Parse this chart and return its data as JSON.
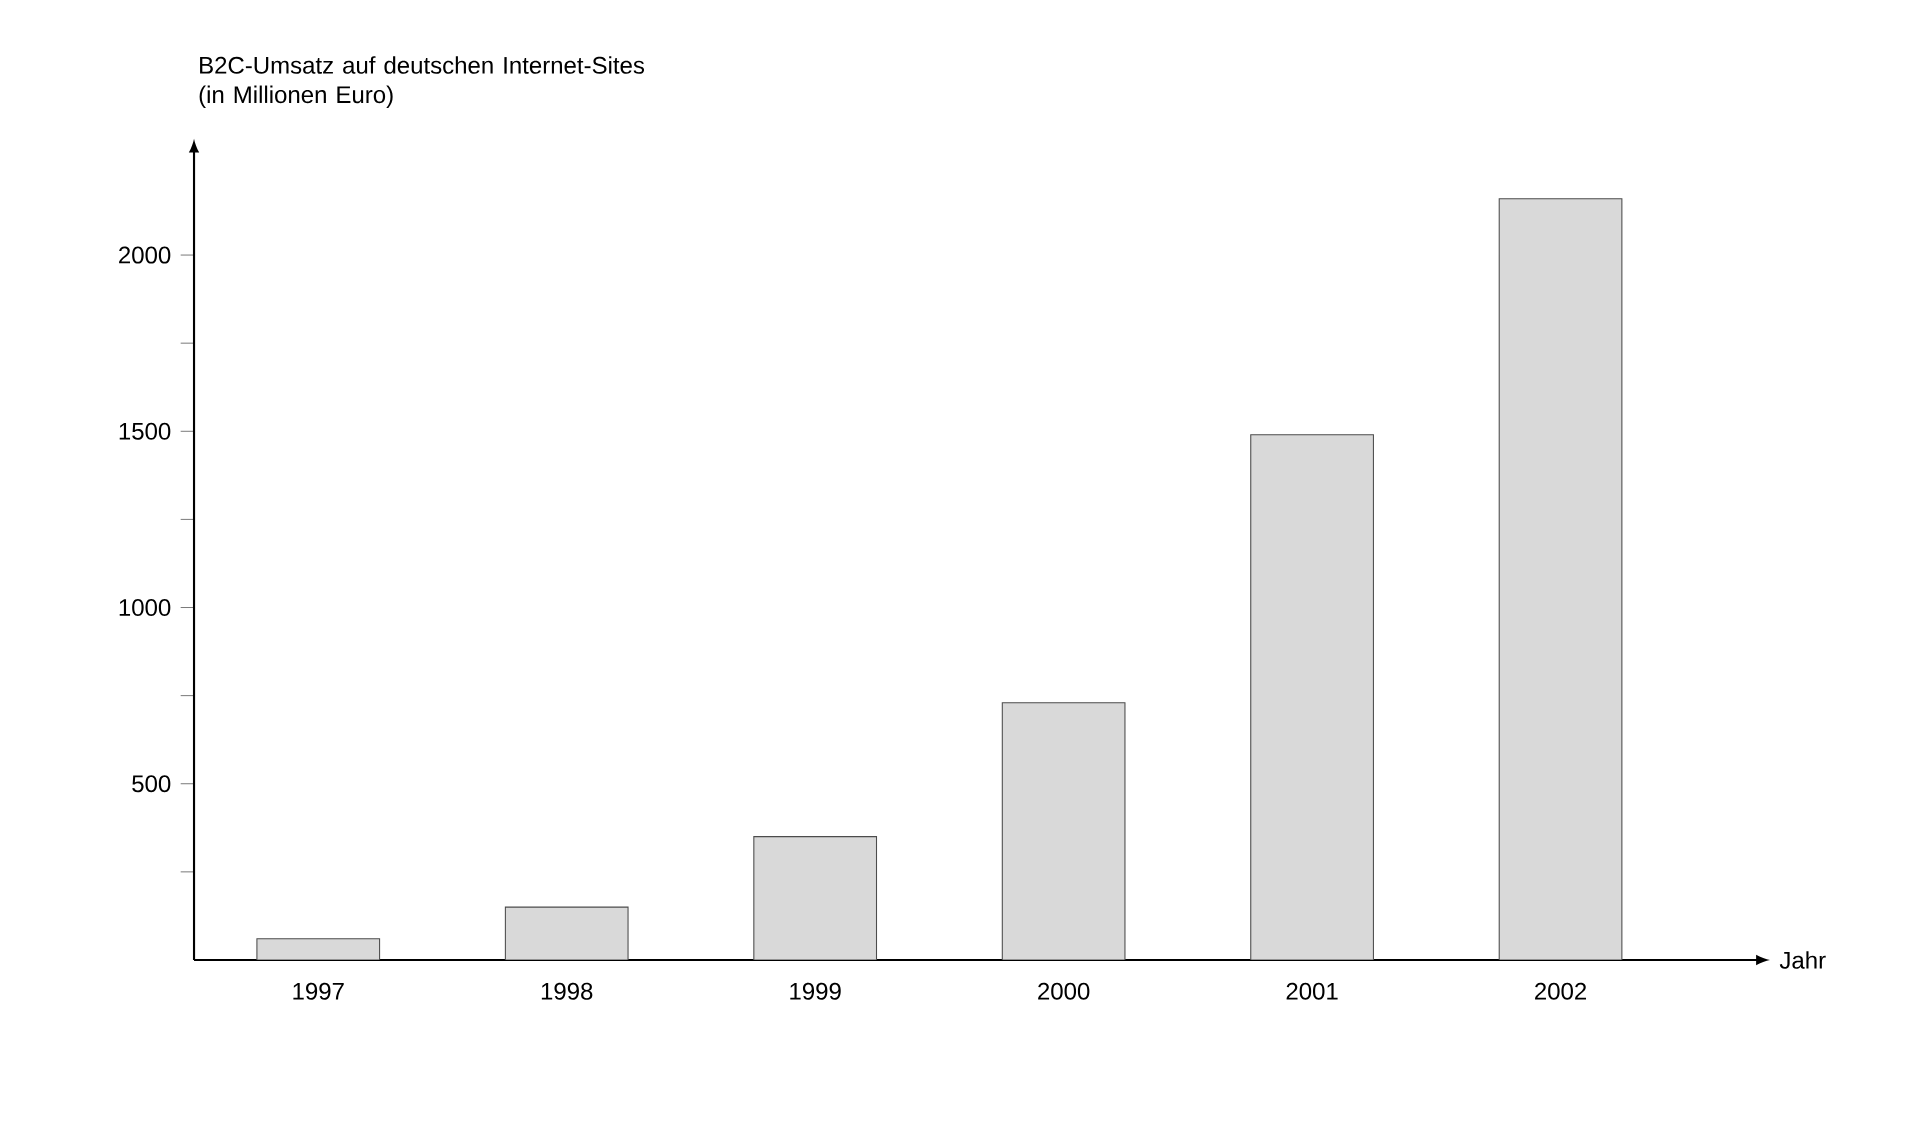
{
  "chart_data": {
    "type": "bar",
    "ylabel": "B2C-Umsatz auf deutschen Internet-Sites (in Millionen Euro)",
    "xlabel": "Jahr",
    "categories": [
      "1997",
      "1998",
      "1999",
      "2000",
      "2001",
      "2002"
    ],
    "values": [
      60,
      150,
      350,
      730,
      1490,
      2160
    ],
    "color": "#d9d9d9",
    "ylim": [
      0,
      2300
    ],
    "yticks": [
      {
        "value": 250,
        "label": null
      },
      500,
      {
        "value": 750,
        "label": null
      },
      1000,
      {
        "value": 1250,
        "label": null
      },
      1500,
      {
        "value": 1750,
        "label": null
      },
      2000
    ],
    "grid": false
  }
}
